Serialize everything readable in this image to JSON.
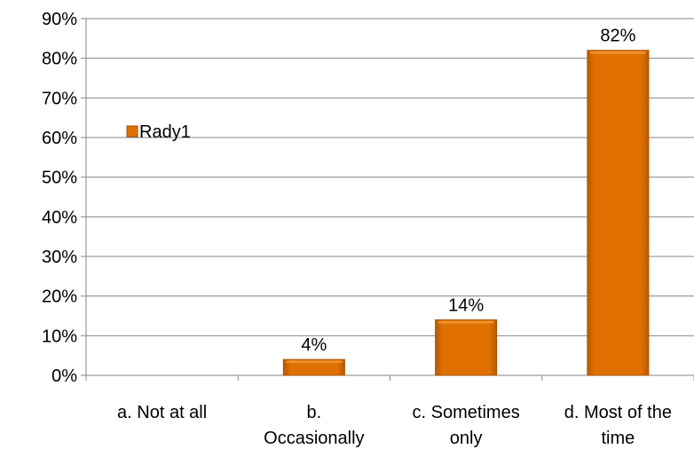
{
  "chart_data": {
    "type": "bar",
    "categories": [
      "a. Not at all",
      "b. Occasionally",
      "c. Sometimes only",
      "d. Most of the time"
    ],
    "category_lines": [
      [
        "a. Not at all"
      ],
      [
        "b.",
        "Occasionally"
      ],
      [
        "c. Sometimes",
        "only"
      ],
      [
        "d. Most of the",
        "time"
      ]
    ],
    "series": [
      {
        "name": "Rady1",
        "values": [
          0,
          4,
          14,
          82
        ]
      }
    ],
    "data_labels": [
      "",
      "4%",
      "14%",
      "82%"
    ],
    "title": "",
    "xlabel": "",
    "ylabel": "",
    "ylim": [
      0,
      90
    ],
    "yticks": [
      0,
      10,
      20,
      30,
      40,
      50,
      60,
      70,
      80,
      90
    ],
    "ytick_labels": [
      "0%",
      "10%",
      "20%",
      "30%",
      "40%",
      "50%",
      "60%",
      "70%",
      "80%",
      "90%"
    ],
    "grid": true,
    "legend_position": "left",
    "colors": {
      "bar": "#e07000",
      "bar_dark": "#a84f00",
      "bar_light": "#f39a3a",
      "grid": "#878787"
    }
  }
}
